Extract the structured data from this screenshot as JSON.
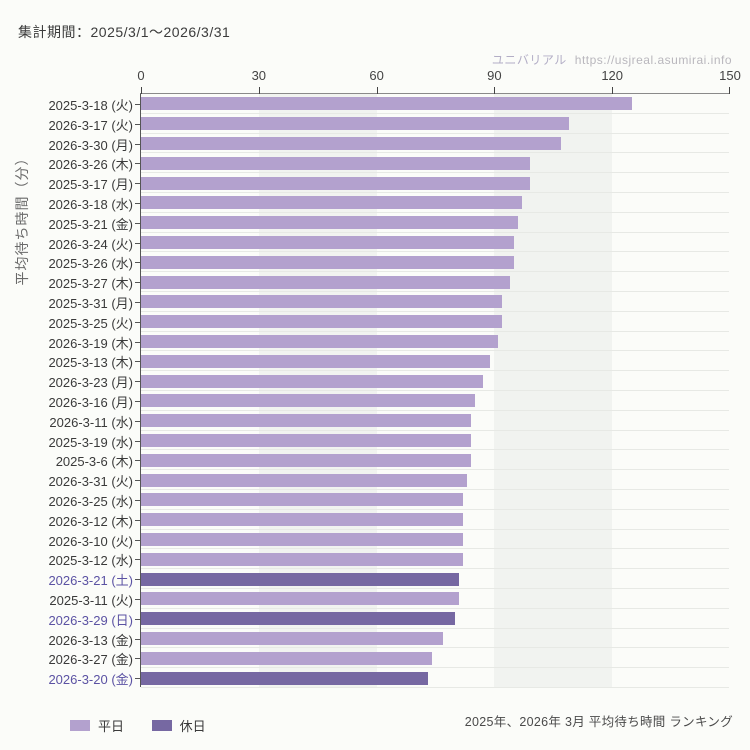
{
  "header": {
    "period_label": "集計期間：2025/3/1〜2026/3/31"
  },
  "watermark": {
    "brand": "ユニバリアル",
    "url": "https://usjreal.asumirai.info"
  },
  "legend": {
    "weekday_label": "平日",
    "holiday_label": "休日"
  },
  "footer": {
    "caption": "2025年、2026年 3月 平均待ち時間 ランキング"
  },
  "colors": {
    "weekday_bar": "#b3a1ce",
    "holiday_bar": "#7668a2",
    "weekday_label_text": "#3a3a3a",
    "holiday_label_text": "#5b52a3",
    "stripe_gray": "#f1f3f0",
    "stripe_white": "transparent"
  },
  "chart_data": {
    "type": "bar",
    "orientation": "horizontal",
    "title": "2025年、2026年 3月 平均待ち時間 ランキング",
    "ylabel": "平均待ち時間（分）",
    "xlim": [
      0,
      150
    ],
    "x_ticks": [
      0,
      30,
      60,
      90,
      120,
      150
    ],
    "grid": "alternating vertical bands every 30 units",
    "legend_position": "bottom-left",
    "legend_entries": [
      "平日",
      "休日"
    ],
    "bars": [
      {
        "date": "2025-3-18 (火)",
        "value": 125,
        "day_type": "weekday"
      },
      {
        "date": "2026-3-17 (火)",
        "value": 109,
        "day_type": "weekday"
      },
      {
        "date": "2026-3-30 (月)",
        "value": 107,
        "day_type": "weekday"
      },
      {
        "date": "2026-3-26 (木)",
        "value": 99,
        "day_type": "weekday"
      },
      {
        "date": "2025-3-17 (月)",
        "value": 99,
        "day_type": "weekday"
      },
      {
        "date": "2026-3-18 (水)",
        "value": 97,
        "day_type": "weekday"
      },
      {
        "date": "2025-3-21 (金)",
        "value": 96,
        "day_type": "weekday"
      },
      {
        "date": "2026-3-24 (火)",
        "value": 95,
        "day_type": "weekday"
      },
      {
        "date": "2025-3-26 (水)",
        "value": 95,
        "day_type": "weekday"
      },
      {
        "date": "2025-3-27 (木)",
        "value": 94,
        "day_type": "weekday"
      },
      {
        "date": "2025-3-31 (月)",
        "value": 92,
        "day_type": "weekday"
      },
      {
        "date": "2025-3-25 (火)",
        "value": 92,
        "day_type": "weekday"
      },
      {
        "date": "2026-3-19 (木)",
        "value": 91,
        "day_type": "weekday"
      },
      {
        "date": "2025-3-13 (木)",
        "value": 89,
        "day_type": "weekday"
      },
      {
        "date": "2026-3-23 (月)",
        "value": 87,
        "day_type": "weekday"
      },
      {
        "date": "2026-3-16 (月)",
        "value": 85,
        "day_type": "weekday"
      },
      {
        "date": "2026-3-11 (水)",
        "value": 84,
        "day_type": "weekday"
      },
      {
        "date": "2025-3-19 (水)",
        "value": 84,
        "day_type": "weekday"
      },
      {
        "date": "2025-3-6 (木)",
        "value": 84,
        "day_type": "weekday"
      },
      {
        "date": "2026-3-31 (火)",
        "value": 83,
        "day_type": "weekday"
      },
      {
        "date": "2026-3-25 (水)",
        "value": 82,
        "day_type": "weekday"
      },
      {
        "date": "2026-3-12 (木)",
        "value": 82,
        "day_type": "weekday"
      },
      {
        "date": "2026-3-10 (火)",
        "value": 82,
        "day_type": "weekday"
      },
      {
        "date": "2025-3-12 (水)",
        "value": 82,
        "day_type": "weekday"
      },
      {
        "date": "2026-3-21 (土)",
        "value": 81,
        "day_type": "holiday"
      },
      {
        "date": "2025-3-11 (火)",
        "value": 81,
        "day_type": "weekday"
      },
      {
        "date": "2026-3-29 (日)",
        "value": 80,
        "day_type": "holiday"
      },
      {
        "date": "2026-3-13 (金)",
        "value": 77,
        "day_type": "weekday"
      },
      {
        "date": "2026-3-27 (金)",
        "value": 74,
        "day_type": "weekday"
      },
      {
        "date": "2026-3-20 (金)",
        "value": 73,
        "day_type": "holiday"
      }
    ]
  }
}
